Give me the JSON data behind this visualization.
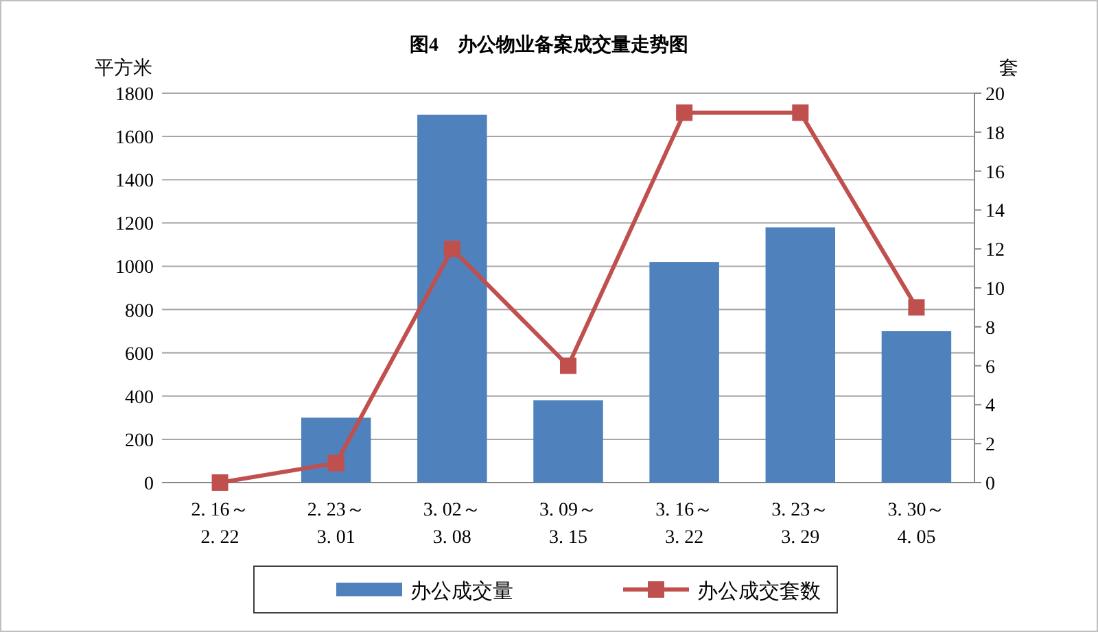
{
  "chart_data": {
    "type": "bar",
    "title": "图4　办公物业备案成交量走势图",
    "ylabel": "平方米",
    "y2label": "套",
    "categories": [
      "2. 16～\n2. 22",
      "2. 23～\n3. 01",
      "3. 02～\n3. 08",
      "3. 09～\n3. 15",
      "3. 16～\n3. 22",
      "3. 23～\n3. 29",
      "3. 30～\n4. 05"
    ],
    "series": [
      {
        "name": "办公成交量",
        "color": "#4f81bd",
        "values": [
          0,
          300,
          1700,
          380,
          1020,
          1180,
          700
        ]
      },
      {
        "name": "办公成交套数",
        "type": "line",
        "axis": "y2",
        "color": "#c0504d",
        "values": [
          0,
          1,
          12,
          6,
          19,
          19,
          9
        ]
      }
    ],
    "ylim": [
      0,
      1800
    ],
    "yticks": [
      0,
      200,
      400,
      600,
      800,
      1000,
      1200,
      1400,
      1600,
      1800
    ],
    "y2lim": [
      0,
      20
    ],
    "y2ticks": [
      0,
      2,
      4,
      6,
      8,
      10,
      12,
      14,
      16,
      18,
      20
    ],
    "grid": "y",
    "legend": "bottom",
    "marker": "square",
    "line_style": "solid"
  }
}
